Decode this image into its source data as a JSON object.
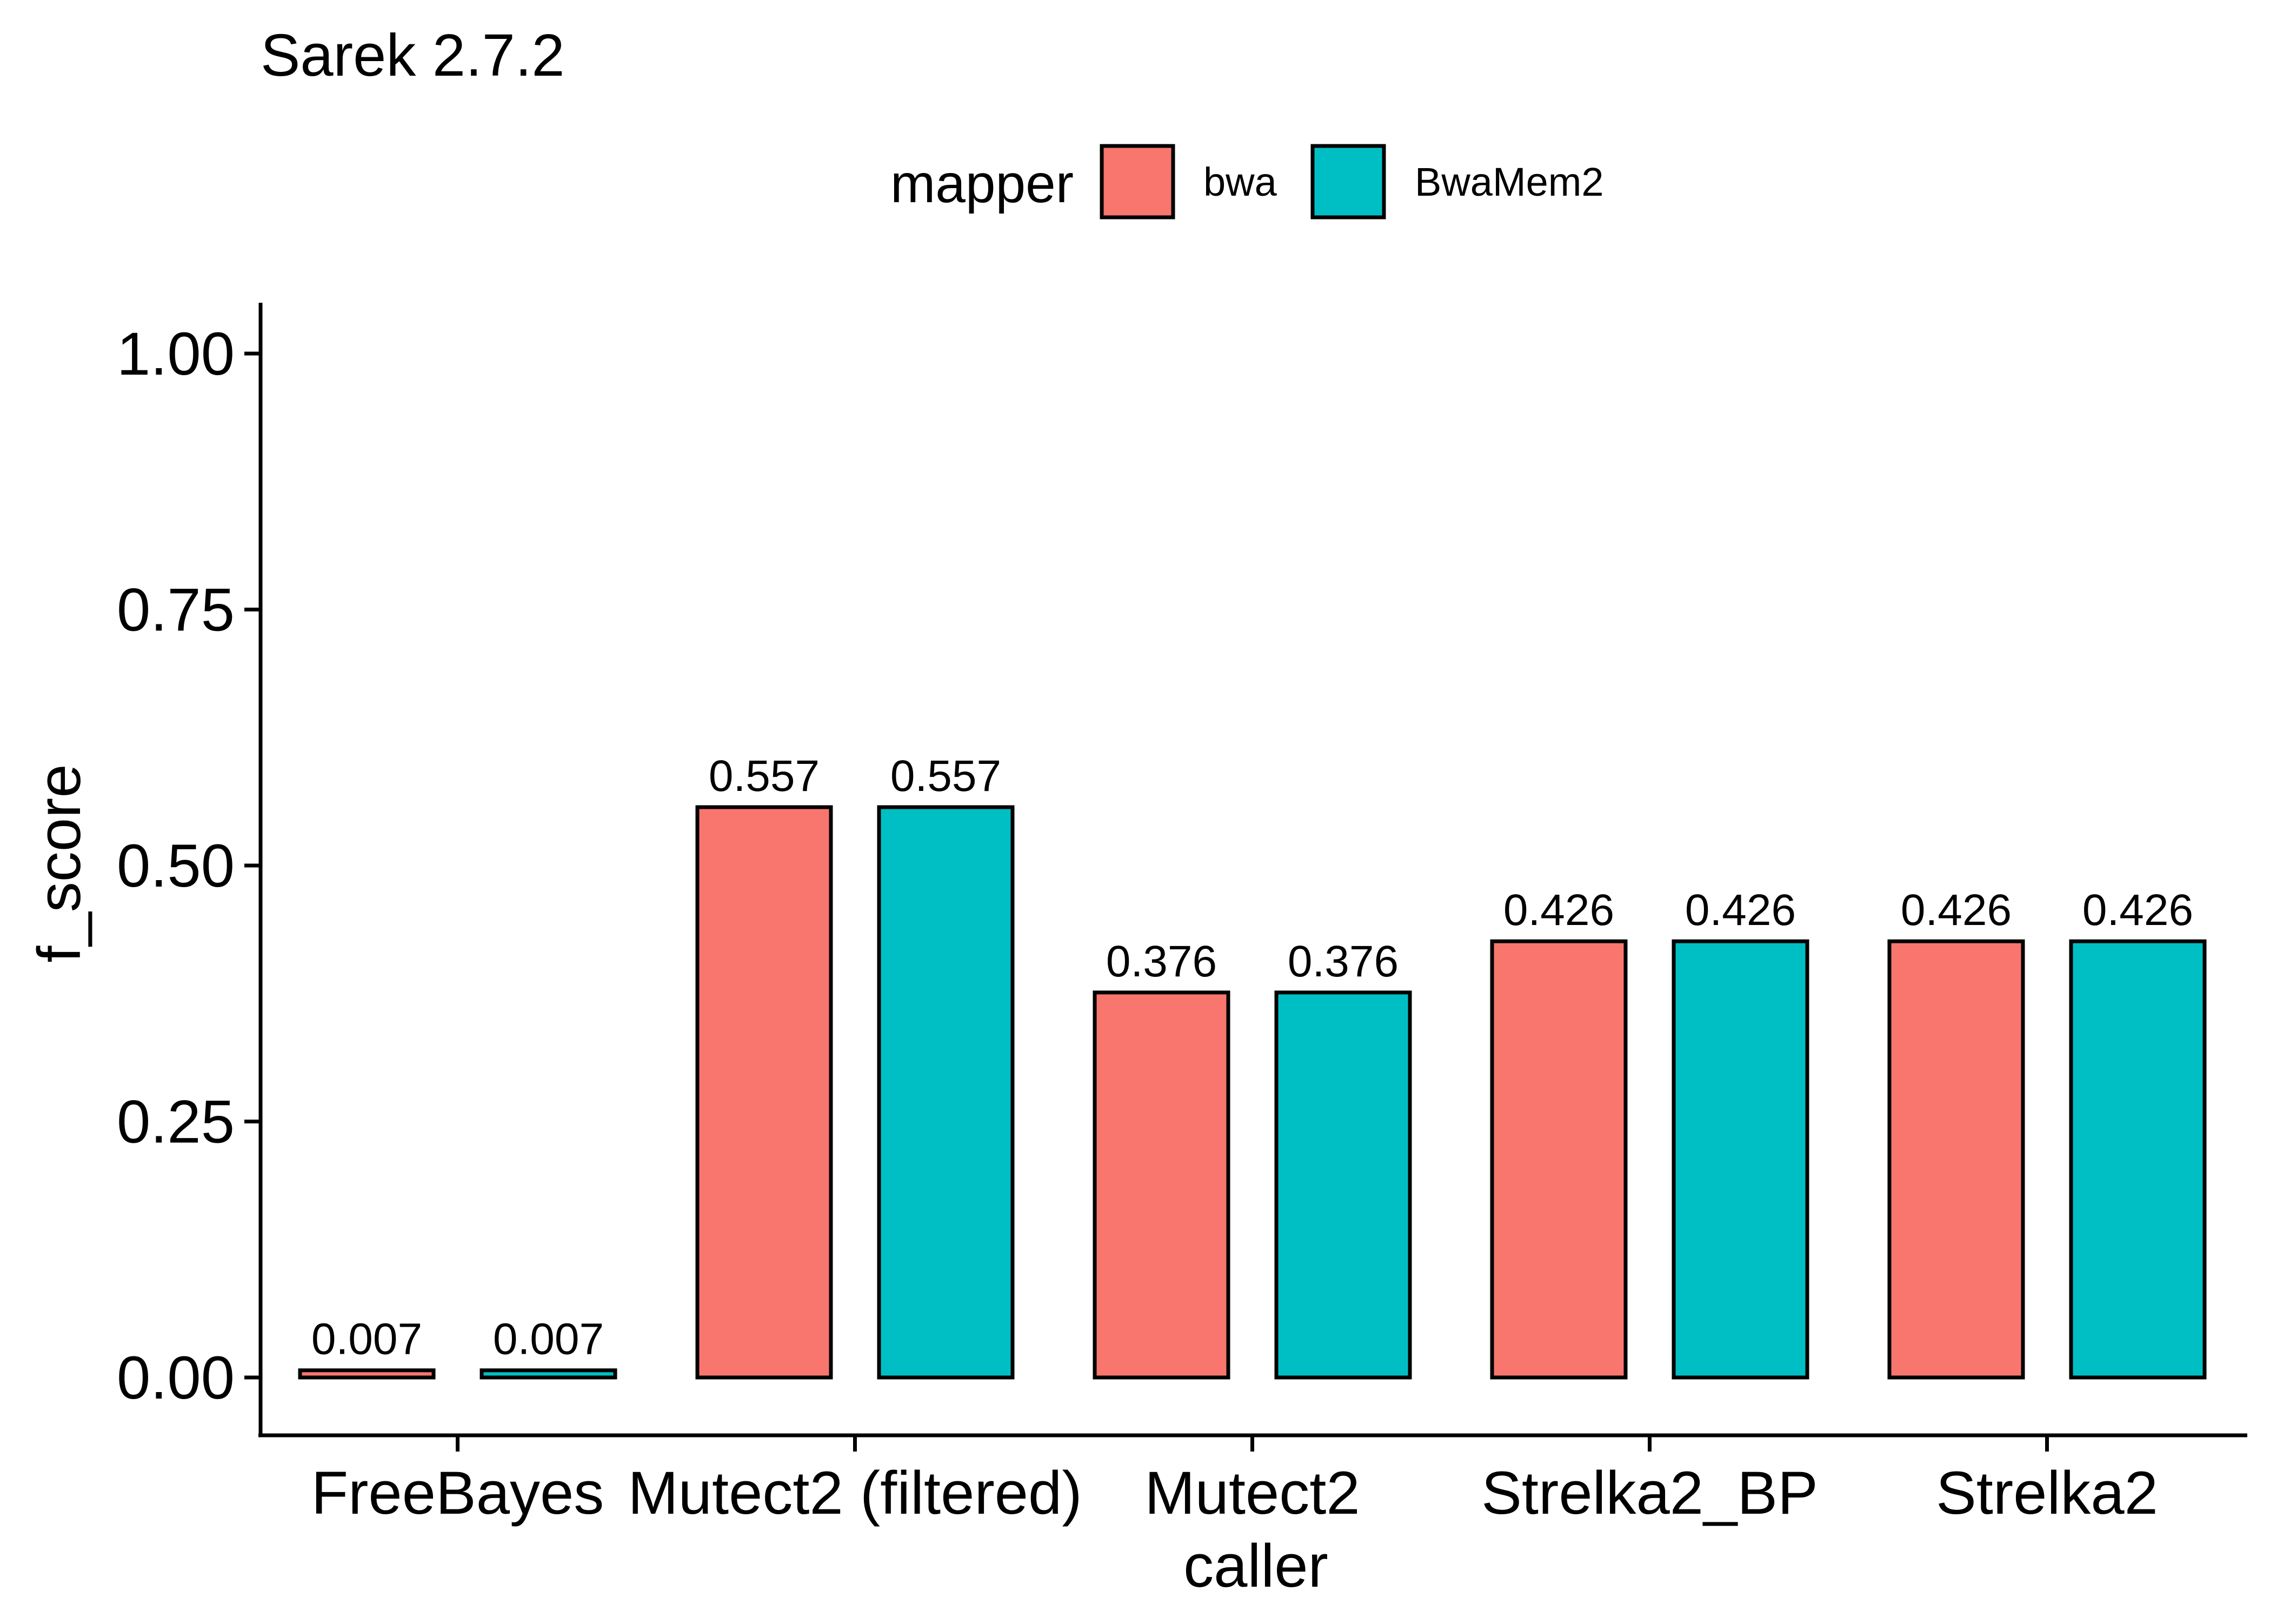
{
  "chart_data": {
    "type": "bar",
    "title": "Sarek 2.7.2",
    "xlabel": "caller",
    "ylabel": "f_score",
    "ylim": [
      -0.05,
      1.05
    ],
    "yticks": [
      0,
      0.25,
      0.5,
      0.75,
      1
    ],
    "ytick_labels": [
      "0.00",
      "0.25",
      "0.50",
      "0.75",
      "1.00"
    ],
    "categories": [
      "FreeBayes",
      "Mutect2 (filtered)",
      "Mutect2",
      "Strelka2_BP",
      "Strelka2"
    ],
    "legend": {
      "title": "mapper",
      "position": "top"
    },
    "grid": false,
    "series": [
      {
        "name": "bwa",
        "color": "#F8766D",
        "values": [
          0.007,
          0.557,
          0.376,
          0.426,
          0.426
        ],
        "labels": [
          "0.007",
          "0.557",
          "0.376",
          "0.426",
          "0.426"
        ]
      },
      {
        "name": "BwaMem2",
        "color": "#00BFC4",
        "values": [
          0.007,
          0.557,
          0.376,
          0.426,
          0.426
        ],
        "labels": [
          "0.007",
          "0.557",
          "0.376",
          "0.426",
          "0.426"
        ]
      }
    ]
  }
}
